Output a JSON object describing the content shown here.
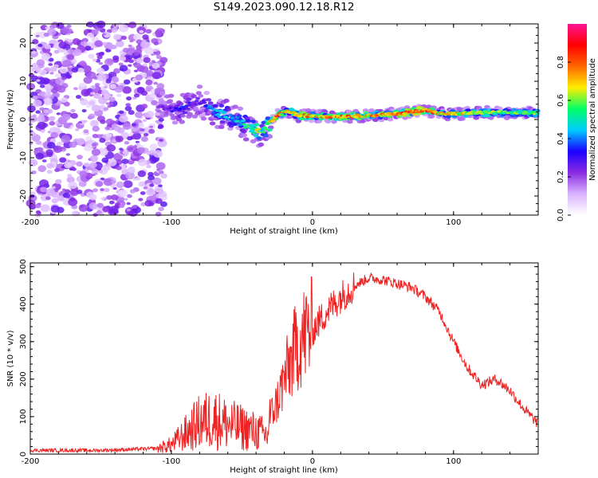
{
  "title": "S149.2023.090.12.18.R12",
  "chart_data": [
    {
      "type": "heatmap",
      "xlabel": "Height of straight line (km)",
      "ylabel": "Frequency (Hz)",
      "xlim": [
        -200,
        160
      ],
      "ylim": [
        -25,
        25
      ],
      "xticks": [
        "-200",
        "-100",
        "0",
        "100"
      ],
      "xtick_values": [
        -200,
        -100,
        0,
        100
      ],
      "yticks": [
        "20",
        "10",
        "0",
        "-10",
        "-20"
      ],
      "ytick_values": [
        20,
        10,
        0,
        -10,
        -20
      ],
      "colorbar": {
        "label": "Normalized spectral amplitude",
        "ticks": [
          "0.0",
          "0.2",
          "0.4",
          "0.6",
          "0.8"
        ],
        "tick_values": [
          0.0,
          0.2,
          0.4,
          0.6,
          0.8
        ],
        "range": [
          0,
          1
        ],
        "colors": [
          "#ffffff",
          "#d9b3ff",
          "#8a2be2",
          "#1a00ff",
          "#00ccff",
          "#00ff66",
          "#ffee00",
          "#ff6600",
          "#ff0000",
          "#ff1493"
        ]
      },
      "ridge_x": [
        -110,
        -100,
        -90,
        -80,
        -70,
        -60,
        -50,
        -40,
        -35,
        -30,
        -25,
        -20,
        -15,
        -10,
        -5,
        0,
        10,
        20,
        40,
        60,
        80,
        90,
        100,
        120,
        140,
        160
      ],
      "ridge_freq": [
        3,
        3,
        3,
        5,
        2,
        1,
        -1,
        -3,
        -3,
        -1,
        1,
        2,
        2,
        1,
        1,
        1,
        0.8,
        0.8,
        1,
        1.5,
        2.5,
        1.5,
        1.5,
        1.8,
        1.8,
        1.8
      ],
      "ridge_amp": [
        0.2,
        0.3,
        0.35,
        0.25,
        0.45,
        0.45,
        0.5,
        0.65,
        0.55,
        0.75,
        0.85,
        0.7,
        0.75,
        0.75,
        0.8,
        0.7,
        0.75,
        0.8,
        0.75,
        0.8,
        0.9,
        0.7,
        0.7,
        0.65,
        0.6,
        0.6
      ],
      "noise_x_range": [
        -200,
        -105
      ]
    },
    {
      "type": "line",
      "xlabel": "Height of straight line (km)",
      "ylabel": "SNR (10 * v/v)",
      "xlim": [
        -200,
        160
      ],
      "ylim": [
        0,
        510
      ],
      "xticks": [
        "-200",
        "-100",
        "0",
        "100"
      ],
      "xtick_values": [
        -200,
        -100,
        0,
        100
      ],
      "yticks": [
        "0",
        "100",
        "200",
        "300",
        "400",
        "500"
      ],
      "ytick_values": [
        0,
        100,
        200,
        300,
        400,
        500
      ],
      "color": "#ee2222",
      "x": [
        -200,
        -150,
        -110,
        -100,
        -90,
        -80,
        -70,
        -60,
        -50,
        -40,
        -32,
        -30,
        -25,
        -20,
        -15,
        -10,
        -5,
        0,
        10,
        20,
        30,
        40,
        50,
        60,
        70,
        80,
        90,
        100,
        110,
        120,
        130,
        140,
        150,
        160
      ],
      "y": [
        10,
        10,
        15,
        25,
        55,
        85,
        95,
        80,
        70,
        60,
        50,
        100,
        140,
        200,
        250,
        300,
        320,
        330,
        380,
        420,
        450,
        470,
        465,
        455,
        445,
        420,
        380,
        300,
        230,
        185,
        200,
        170,
        120,
        80
      ]
    }
  ]
}
